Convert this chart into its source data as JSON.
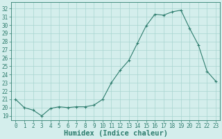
{
  "x": [
    0,
    1,
    2,
    3,
    4,
    5,
    6,
    7,
    8,
    9,
    10,
    11,
    12,
    13,
    14,
    15,
    16,
    17,
    18,
    19,
    20,
    21,
    22,
    23
  ],
  "y": [
    21.0,
    20.0,
    19.7,
    19.0,
    19.9,
    20.1,
    20.0,
    20.1,
    20.1,
    20.3,
    21.0,
    23.0,
    24.5,
    25.7,
    27.8,
    29.9,
    31.3,
    31.2,
    31.6,
    31.8,
    29.6,
    27.6,
    24.4,
    23.2
  ],
  "xlabel": "Humidex (Indice chaleur)",
  "line_color": "#2e7d6e",
  "marker_color": "#2e7d6e",
  "bg_color": "#d4eeec",
  "grid_color": "#a8d5d0",
  "ylim": [
    18.5,
    32.8
  ],
  "xlim": [
    -0.5,
    23.5
  ],
  "yticks": [
    19,
    20,
    21,
    22,
    23,
    24,
    25,
    26,
    27,
    28,
    29,
    30,
    31,
    32
  ],
  "xticks": [
    0,
    1,
    2,
    3,
    4,
    5,
    6,
    7,
    8,
    9,
    10,
    11,
    12,
    13,
    14,
    15,
    16,
    17,
    18,
    19,
    20,
    21,
    22,
    23
  ],
  "tick_fontsize": 5.5,
  "xlabel_fontsize": 7.5,
  "xlabel_fontweight": "bold"
}
